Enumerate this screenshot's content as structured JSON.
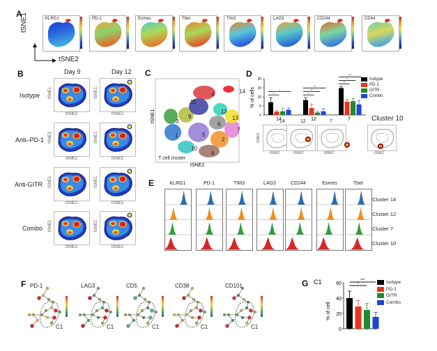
{
  "panels": {
    "A": {
      "label": "A",
      "yaxis": "tSNE1",
      "xaxis": "tSNE2",
      "markers": [
        "KLRG1",
        "PD-1",
        "Eomes",
        "Tbet",
        "Tim3",
        "LAG3",
        "CD244",
        "CD44"
      ]
    },
    "B": {
      "label": "B",
      "columns": [
        "Day 9",
        "Day 12"
      ],
      "rows": [
        "Isotype",
        "Anti–PD-1",
        "Anti-GITR",
        "Combo"
      ],
      "xaxis": "tSNE2",
      "yaxis": "tSNE1"
    },
    "C": {
      "label": "C",
      "caption": "T cell cluster",
      "xaxis": "tSNE2",
      "yaxis": "tSNE1",
      "clusters": [
        {
          "id": "1",
          "color": "#3f7fd0"
        },
        {
          "id": "2",
          "color": "#f29a3a"
        },
        {
          "id": "3",
          "color": "#4aa64a"
        },
        {
          "id": "4",
          "color": "#e0474c"
        },
        {
          "id": "5",
          "color": "#9a84d6"
        },
        {
          "id": "6",
          "color": "#9a9a9a"
        },
        {
          "id": "7",
          "color": "#e58ad6"
        },
        {
          "id": "8",
          "color": "#a07a70"
        },
        {
          "id": "9",
          "color": "#b8c04a"
        },
        {
          "id": "10",
          "color": "#42c8c8"
        },
        {
          "id": "11",
          "color": "#4b4ba8"
        },
        {
          "id": "12",
          "color": "#3cd6b8"
        },
        {
          "id": "13",
          "color": "#f2e23a"
        },
        {
          "id": "14",
          "color": "#e8242c"
        }
      ]
    },
    "D": {
      "label": "D",
      "cluster_plot_titles": [
        "14",
        "12",
        "7"
      ],
      "cluster_extra_title": "Cluster 10",
      "mini_xaxis": "tSNE2",
      "mini_yaxis": "tSNE1"
    },
    "E": {
      "label": "E",
      "markers": [
        "KLRG1",
        "PD-1",
        "TIM3",
        "LAG3",
        "CD244",
        "Eomes",
        "Tbet"
      ],
      "rows": [
        "Cluster 14",
        "Cluster 12",
        "Cluster 7",
        "Cluster 10"
      ],
      "row_colors": [
        "#2b6cb0",
        "#f28a1e",
        "#2e9e3a",
        "#d62728"
      ]
    },
    "F": {
      "label": "F",
      "markers": [
        "PD-1",
        "LAG3",
        "CD5",
        "CD38",
        "CD101"
      ],
      "gate_label": "C1"
    },
    "G": {
      "label": "G"
    }
  },
  "legend": [
    {
      "name": "Isotype",
      "color": "#000000"
    },
    {
      "name": "PD-1",
      "color": "#e8341c"
    },
    {
      "name": "GITR",
      "color": "#1f8a2e"
    },
    {
      "name": "Combo",
      "color": "#1f44d8"
    }
  ],
  "chart_data": [
    {
      "type": "bar",
      "panel": "D",
      "title": "",
      "xlabel": "",
      "ylabel": "% of cells",
      "ylim": [
        0,
        20
      ],
      "yticks": [
        "0",
        "5",
        "10",
        "15",
        "20"
      ],
      "categories": [
        "14",
        "12",
        "7"
      ],
      "series": [
        {
          "name": "Isotype",
          "values": [
            7.0,
            8.2,
            14.8
          ],
          "errors": [
            2.5,
            1.3,
            0.8
          ]
        },
        {
          "name": "PD-1",
          "values": [
            1.8,
            3.8,
            7.3
          ],
          "errors": [
            0.6,
            2.2,
            1.3
          ]
        },
        {
          "name": "GITR",
          "values": [
            2.0,
            1.3,
            7.6
          ],
          "errors": [
            1.8,
            0.5,
            1.5
          ]
        },
        {
          "name": "Combo",
          "values": [
            2.8,
            2.0,
            5.8
          ],
          "errors": [
            1.0,
            1.5,
            2.0
          ]
        }
      ],
      "significance": [
        {
          "category": "14",
          "pairs": [
            [
              "Isotype",
              "PD-1"
            ],
            [
              "Isotype",
              "Combo"
            ]
          ],
          "marks": [
            "*",
            "*"
          ]
        },
        {
          "category": "12",
          "pairs": [
            [
              "Isotype",
              "PD-1"
            ],
            [
              "Isotype",
              "GITR"
            ],
            [
              "Isotype",
              "Combo"
            ]
          ],
          "marks": [
            "*",
            "**",
            "**"
          ]
        },
        {
          "category": "7",
          "pairs": [
            [
              "Isotype",
              "PD-1"
            ],
            [
              "Isotype",
              "GITR"
            ],
            [
              "Isotype",
              "Combo"
            ]
          ],
          "marks": [
            "**",
            "*",
            "***"
          ]
        }
      ],
      "legend_position": "right"
    },
    {
      "type": "bar",
      "panel": "G",
      "title": "C1",
      "xlabel": "",
      "ylabel": "% of cell",
      "ylim": [
        0,
        60
      ],
      "yticks": [
        "0",
        "20",
        "40",
        "60"
      ],
      "categories": [
        "Isotype",
        "PD-1",
        "GITR",
        "Combo"
      ],
      "values": [
        40,
        29,
        24.5,
        15.5
      ],
      "errors": [
        9,
        8,
        8.5,
        6
      ],
      "significance": [
        {
          "pair": [
            "Isotype",
            "GITR"
          ],
          "mark": "*"
        },
        {
          "pair": [
            "Isotype",
            "Combo"
          ],
          "mark": "***"
        }
      ],
      "legend_position": "right"
    }
  ]
}
